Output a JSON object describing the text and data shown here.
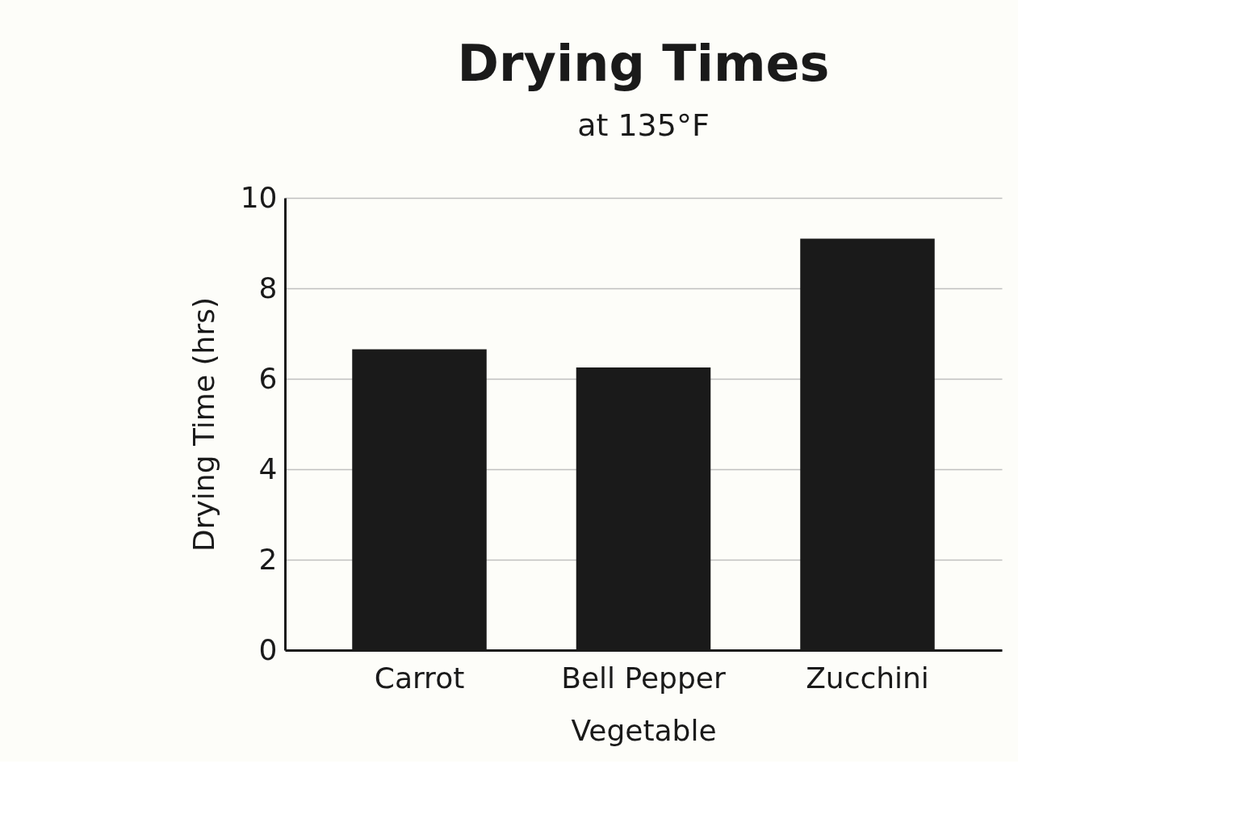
{
  "chart_data": {
    "type": "bar",
    "title": "Drying Times",
    "subtitle": "at 135°F",
    "xlabel": "Vegetable",
    "ylabel": "Drying Time (hrs)",
    "categories": [
      "Carrot",
      "Bell Pepper",
      "Zucchini"
    ],
    "values": [
      6.65,
      6.25,
      9.1
    ],
    "color": "#1a1a1a",
    "ylim": [
      0,
      10
    ],
    "yticks": [
      0,
      2,
      4,
      6,
      8,
      10
    ],
    "grid": "y"
  }
}
